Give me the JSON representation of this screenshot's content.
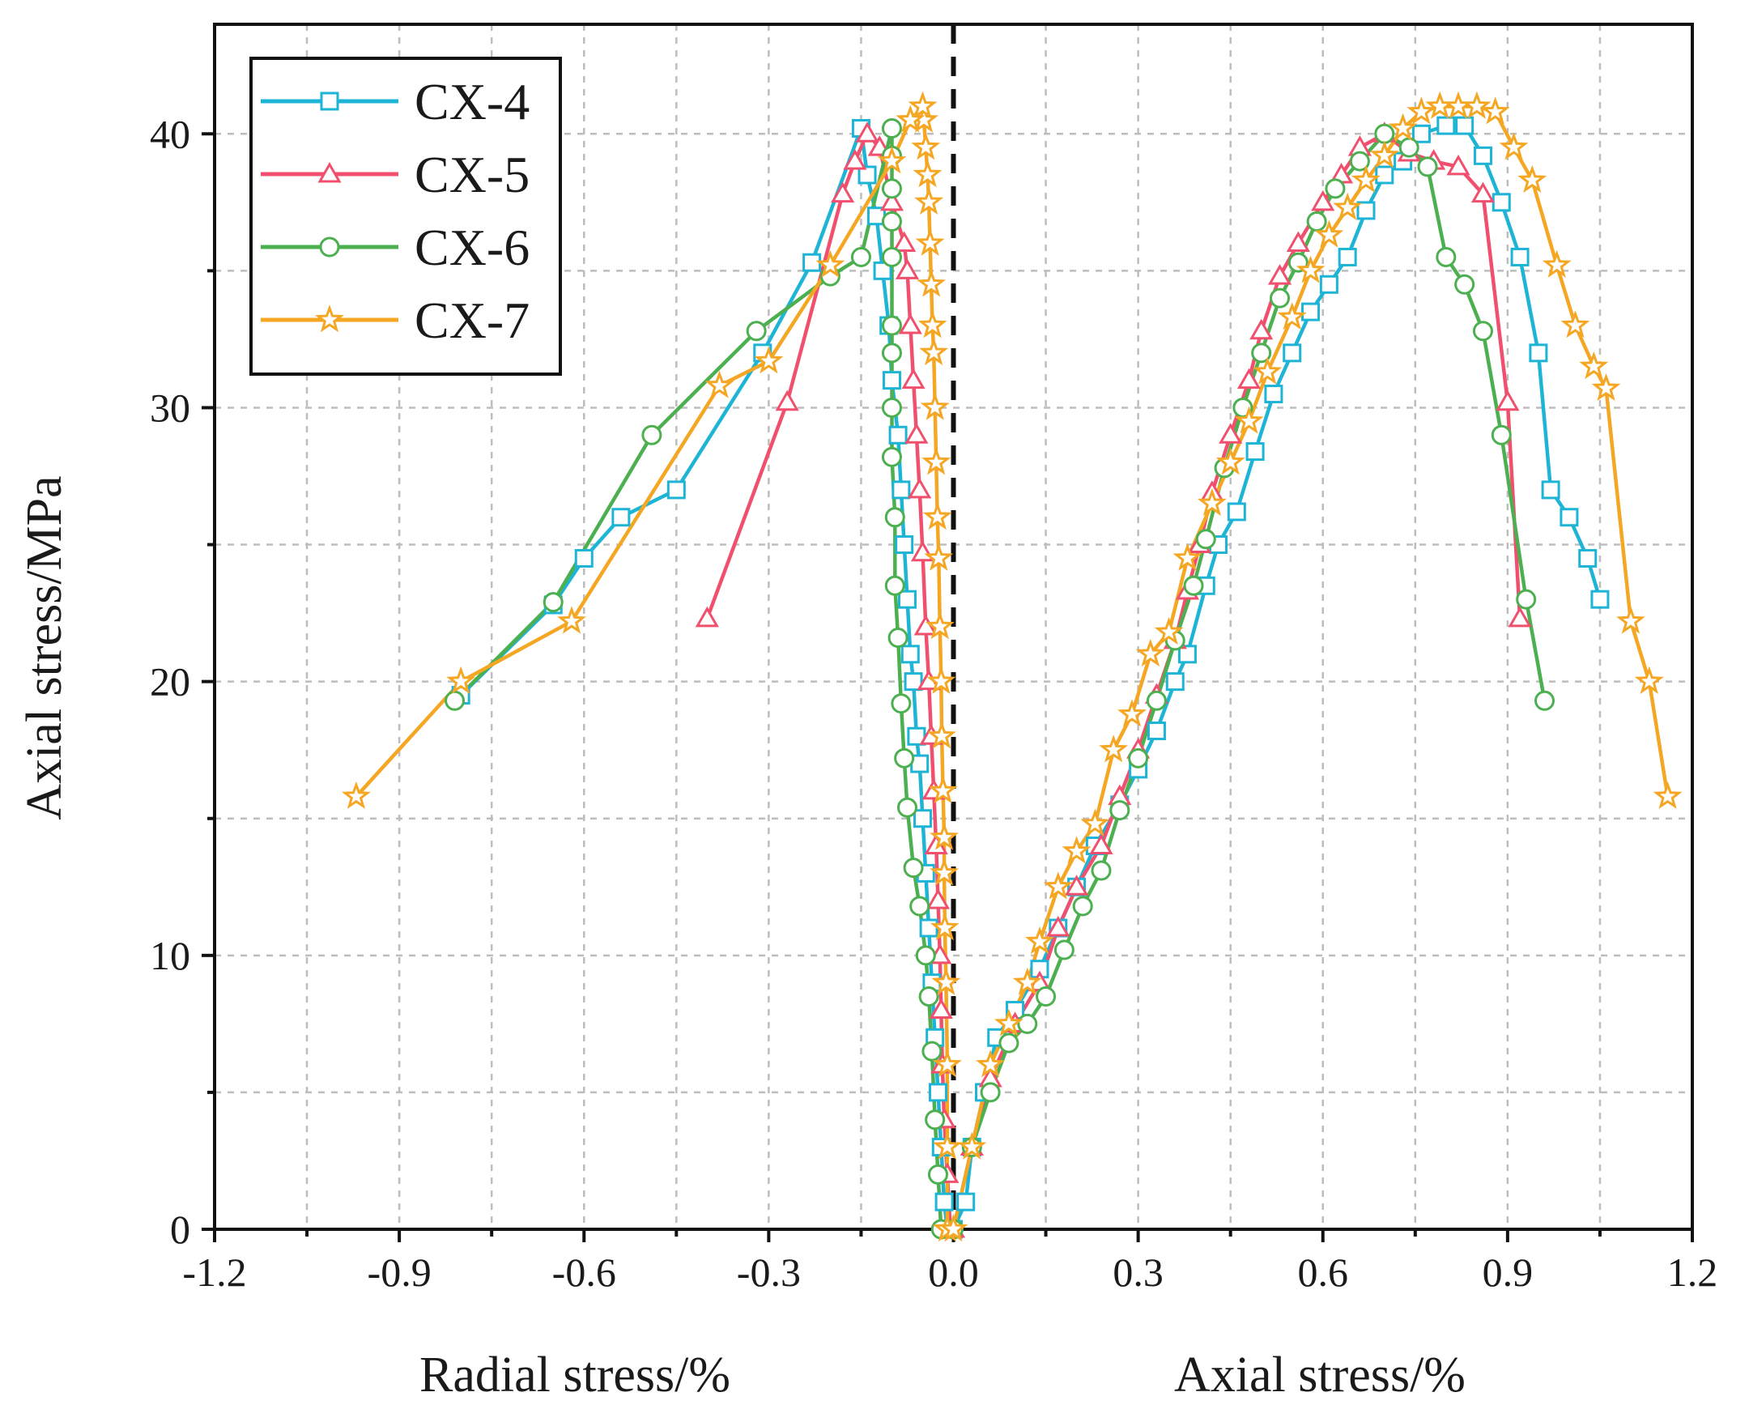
{
  "chart_data": {
    "type": "line",
    "title": "",
    "ylabel": "Axial stress/MPa",
    "xlabel_left": "Radial stress/%",
    "xlabel_right": "Axial stress/%",
    "xlim": [
      -1.2,
      1.2
    ],
    "ylim": [
      0,
      44
    ],
    "x_ticks": [
      -1.2,
      -0.9,
      -0.6,
      -0.3,
      0.0,
      0.3,
      0.6,
      0.9,
      1.2
    ],
    "x_tick_labels": [
      "-1.2",
      "-0.9",
      "-0.6",
      "-0.3",
      "0.0",
      "0.3",
      "0.6",
      "0.9",
      "1.2"
    ],
    "y_ticks": [
      0,
      10,
      20,
      30,
      40
    ],
    "y_tick_labels": [
      "0",
      "10",
      "20",
      "30",
      "40"
    ],
    "grid": true,
    "legend_position": "top-left",
    "series": [
      {
        "name": "CX-4",
        "color": "#1eb4d6",
        "marker": "square",
        "radial": [
          [
            -0.01,
            0
          ],
          [
            -0.015,
            1
          ],
          [
            -0.02,
            3
          ],
          [
            -0.025,
            5
          ],
          [
            -0.03,
            7
          ],
          [
            -0.035,
            9
          ],
          [
            -0.04,
            11
          ],
          [
            -0.045,
            13
          ],
          [
            -0.05,
            15
          ],
          [
            -0.055,
            17
          ],
          [
            -0.06,
            18
          ],
          [
            -0.065,
            20
          ],
          [
            -0.07,
            21
          ],
          [
            -0.075,
            23
          ],
          [
            -0.08,
            25
          ],
          [
            -0.085,
            27
          ],
          [
            -0.09,
            29
          ],
          [
            -0.1,
            31
          ],
          [
            -0.105,
            33
          ],
          [
            -0.115,
            35
          ],
          [
            -0.125,
            37
          ],
          [
            -0.14,
            38.5
          ],
          [
            -0.15,
            40.2
          ],
          [
            -0.23,
            35.3
          ],
          [
            -0.31,
            32
          ],
          [
            -0.45,
            27
          ],
          [
            -0.54,
            26
          ],
          [
            -0.6,
            24.5
          ],
          [
            -0.65,
            22.8
          ],
          [
            -0.8,
            19.5
          ]
        ],
        "axial": [
          [
            0.0,
            0
          ],
          [
            0.02,
            1
          ],
          [
            0.03,
            3
          ],
          [
            0.05,
            5
          ],
          [
            0.07,
            7
          ],
          [
            0.1,
            8
          ],
          [
            0.14,
            9.5
          ],
          [
            0.17,
            11
          ],
          [
            0.2,
            12.5
          ],
          [
            0.23,
            14
          ],
          [
            0.27,
            15.5
          ],
          [
            0.3,
            16.8
          ],
          [
            0.33,
            18.2
          ],
          [
            0.36,
            20
          ],
          [
            0.38,
            21
          ],
          [
            0.41,
            23.5
          ],
          [
            0.43,
            25
          ],
          [
            0.46,
            26.2
          ],
          [
            0.49,
            28.4
          ],
          [
            0.52,
            30.5
          ],
          [
            0.55,
            32
          ],
          [
            0.58,
            33.5
          ],
          [
            0.61,
            34.5
          ],
          [
            0.64,
            35.5
          ],
          [
            0.67,
            37.2
          ],
          [
            0.7,
            38.5
          ],
          [
            0.73,
            39
          ],
          [
            0.76,
            40
          ],
          [
            0.8,
            40.3
          ],
          [
            0.83,
            40.3
          ],
          [
            0.86,
            39.2
          ],
          [
            0.89,
            37.5
          ],
          [
            0.92,
            35.5
          ],
          [
            0.95,
            32
          ],
          [
            0.97,
            27
          ],
          [
            1.0,
            26
          ],
          [
            1.03,
            24.5
          ],
          [
            1.05,
            23
          ]
        ]
      },
      {
        "name": "CX-5",
        "color": "#f0506e",
        "marker": "triangle",
        "radial": [
          [
            -0.005,
            0
          ],
          [
            -0.01,
            2
          ],
          [
            -0.015,
            4
          ],
          [
            -0.018,
            6
          ],
          [
            -0.02,
            8
          ],
          [
            -0.022,
            10
          ],
          [
            -0.025,
            12
          ],
          [
            -0.028,
            14
          ],
          [
            -0.032,
            16
          ],
          [
            -0.036,
            18
          ],
          [
            -0.04,
            20
          ],
          [
            -0.045,
            22
          ],
          [
            -0.05,
            24.7
          ],
          [
            -0.055,
            27
          ],
          [
            -0.06,
            29
          ],
          [
            -0.065,
            31
          ],
          [
            -0.07,
            33
          ],
          [
            -0.075,
            35
          ],
          [
            -0.08,
            36
          ],
          [
            -0.1,
            37.5
          ],
          [
            -0.12,
            39.5
          ],
          [
            -0.14,
            40
          ],
          [
            -0.16,
            39
          ],
          [
            -0.18,
            37.8
          ],
          [
            -0.27,
            30.2
          ],
          [
            -0.4,
            22.3
          ]
        ],
        "axial": [
          [
            0.0,
            0
          ],
          [
            0.03,
            3
          ],
          [
            0.06,
            5.5
          ],
          [
            0.1,
            7.5
          ],
          [
            0.14,
            9
          ],
          [
            0.17,
            11
          ],
          [
            0.2,
            12.5
          ],
          [
            0.24,
            14
          ],
          [
            0.27,
            15.8
          ],
          [
            0.3,
            17.5
          ],
          [
            0.33,
            19.5
          ],
          [
            0.36,
            21.5
          ],
          [
            0.38,
            23.3
          ],
          [
            0.4,
            25
          ],
          [
            0.42,
            26.9
          ],
          [
            0.45,
            29
          ],
          [
            0.48,
            31
          ],
          [
            0.5,
            32.8
          ],
          [
            0.53,
            34.8
          ],
          [
            0.56,
            36
          ],
          [
            0.6,
            37.5
          ],
          [
            0.63,
            38.5
          ],
          [
            0.66,
            39.5
          ],
          [
            0.7,
            40
          ],
          [
            0.74,
            39.3
          ],
          [
            0.78,
            39
          ],
          [
            0.82,
            38.8
          ],
          [
            0.86,
            37.8
          ],
          [
            0.9,
            30.2
          ],
          [
            0.92,
            22.3
          ]
        ]
      },
      {
        "name": "CX-6",
        "color": "#4caf50",
        "marker": "circle",
        "radial": [
          [
            -0.02,
            0
          ],
          [
            -0.025,
            2
          ],
          [
            -0.03,
            4
          ],
          [
            -0.035,
            6.5
          ],
          [
            -0.04,
            8.5
          ],
          [
            -0.045,
            10
          ],
          [
            -0.055,
            11.8
          ],
          [
            -0.065,
            13.2
          ],
          [
            -0.075,
            15.4
          ],
          [
            -0.08,
            17.2
          ],
          [
            -0.085,
            19.2
          ],
          [
            -0.09,
            21.6
          ],
          [
            -0.095,
            23.5
          ],
          [
            -0.095,
            26
          ],
          [
            -0.1,
            28.2
          ],
          [
            -0.1,
            30
          ],
          [
            -0.1,
            32
          ],
          [
            -0.1,
            33
          ],
          [
            -0.1,
            35.5
          ],
          [
            -0.1,
            36.8
          ],
          [
            -0.1,
            38
          ],
          [
            -0.1,
            39.2
          ],
          [
            -0.1,
            40.2
          ],
          [
            -0.15,
            35.5
          ],
          [
            -0.2,
            34.8
          ],
          [
            -0.32,
            32.8
          ],
          [
            -0.49,
            29
          ],
          [
            -0.65,
            22.9
          ],
          [
            -0.81,
            19.3
          ]
        ],
        "axial": [
          [
            0.0,
            0
          ],
          [
            0.03,
            3
          ],
          [
            0.06,
            5
          ],
          [
            0.09,
            6.8
          ],
          [
            0.12,
            7.5
          ],
          [
            0.15,
            8.5
          ],
          [
            0.18,
            10.2
          ],
          [
            0.21,
            11.8
          ],
          [
            0.24,
            13.1
          ],
          [
            0.27,
            15.3
          ],
          [
            0.3,
            17.2
          ],
          [
            0.33,
            19.3
          ],
          [
            0.36,
            21.5
          ],
          [
            0.39,
            23.5
          ],
          [
            0.41,
            25.2
          ],
          [
            0.44,
            27.8
          ],
          [
            0.47,
            30
          ],
          [
            0.5,
            32
          ],
          [
            0.53,
            34
          ],
          [
            0.56,
            35.3
          ],
          [
            0.59,
            36.8
          ],
          [
            0.62,
            38
          ],
          [
            0.66,
            39
          ],
          [
            0.7,
            40
          ],
          [
            0.74,
            39.5
          ],
          [
            0.77,
            38.8
          ],
          [
            0.8,
            35.5
          ],
          [
            0.83,
            34.5
          ],
          [
            0.86,
            32.8
          ],
          [
            0.89,
            29
          ],
          [
            0.93,
            23
          ],
          [
            0.96,
            19.3
          ]
        ]
      },
      {
        "name": "CX-7",
        "color": "#f5a623",
        "marker": "star",
        "radial": [
          [
            -0.01,
            0
          ],
          [
            -0.01,
            3
          ],
          [
            -0.01,
            6
          ],
          [
            -0.012,
            9
          ],
          [
            -0.014,
            11
          ],
          [
            -0.015,
            13
          ],
          [
            -0.015,
            14.3
          ],
          [
            -0.017,
            16
          ],
          [
            -0.019,
            18
          ],
          [
            -0.02,
            20
          ],
          [
            -0.022,
            22
          ],
          [
            -0.024,
            24.5
          ],
          [
            -0.026,
            26
          ],
          [
            -0.028,
            28
          ],
          [
            -0.03,
            30
          ],
          [
            -0.032,
            32
          ],
          [
            -0.034,
            33
          ],
          [
            -0.036,
            34.5
          ],
          [
            -0.038,
            36
          ],
          [
            -0.04,
            37.5
          ],
          [
            -0.042,
            38.5
          ],
          [
            -0.045,
            39.5
          ],
          [
            -0.048,
            40.5
          ],
          [
            -0.05,
            41
          ],
          [
            -0.07,
            40.5
          ],
          [
            -0.1,
            39
          ],
          [
            -0.2,
            35.2
          ],
          [
            -0.3,
            31.7
          ],
          [
            -0.38,
            30.8
          ],
          [
            -0.62,
            22.2
          ],
          [
            -0.8,
            20
          ],
          [
            -0.97,
            15.8
          ]
        ],
        "axial": [
          [
            0.0,
            0
          ],
          [
            0.03,
            3
          ],
          [
            0.06,
            6
          ],
          [
            0.09,
            7.5
          ],
          [
            0.12,
            9
          ],
          [
            0.14,
            10.5
          ],
          [
            0.17,
            12.5
          ],
          [
            0.2,
            13.8
          ],
          [
            0.23,
            14.8
          ],
          [
            0.26,
            17.5
          ],
          [
            0.29,
            18.8
          ],
          [
            0.32,
            21
          ],
          [
            0.35,
            21.8
          ],
          [
            0.38,
            24.5
          ],
          [
            0.42,
            26.5
          ],
          [
            0.45,
            28
          ],
          [
            0.48,
            29.5
          ],
          [
            0.51,
            31.3
          ],
          [
            0.55,
            33.3
          ],
          [
            0.58,
            35
          ],
          [
            0.61,
            36.3
          ],
          [
            0.64,
            37.3
          ],
          [
            0.67,
            38.3
          ],
          [
            0.7,
            39.2
          ],
          [
            0.73,
            40.2
          ],
          [
            0.76,
            40.8
          ],
          [
            0.79,
            41
          ],
          [
            0.82,
            41
          ],
          [
            0.85,
            41
          ],
          [
            0.88,
            40.8
          ],
          [
            0.91,
            39.5
          ],
          [
            0.94,
            38.3
          ],
          [
            0.98,
            35.2
          ],
          [
            1.01,
            33
          ],
          [
            1.04,
            31.5
          ],
          [
            1.06,
            30.7
          ],
          [
            1.1,
            22.2
          ],
          [
            1.13,
            20
          ],
          [
            1.16,
            15.8
          ]
        ]
      }
    ]
  }
}
